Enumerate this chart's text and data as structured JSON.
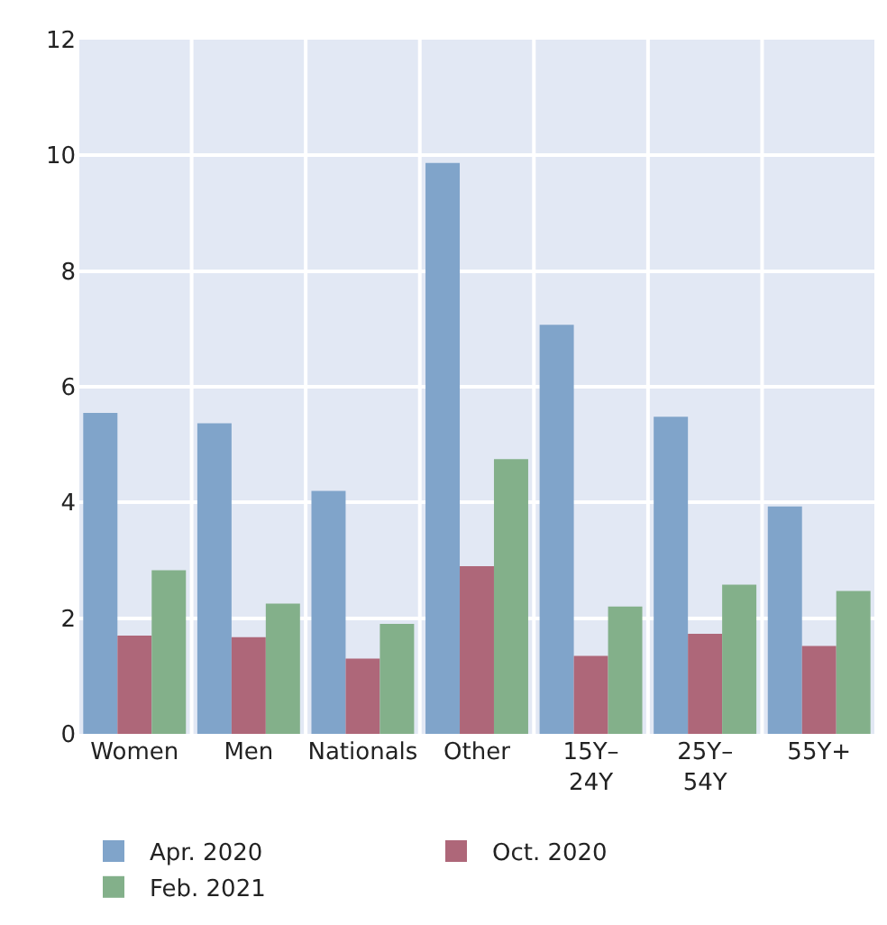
{
  "chart_data": {
    "type": "bar",
    "categories": [
      "Women",
      "Men",
      "Nationals",
      "Other",
      "15Y–24Y",
      "25Y–54Y",
      "55Y+"
    ],
    "series": [
      {
        "name": "Apr. 2020",
        "color": "#80a4ca",
        "values": [
          5.55,
          5.37,
          4.2,
          9.87,
          7.07,
          5.48,
          3.93
        ]
      },
      {
        "name": "Oct. 2020",
        "color": "#ae6779",
        "values": [
          1.7,
          1.67,
          1.3,
          2.9,
          1.35,
          1.73,
          1.52
        ]
      },
      {
        "name": "Feb. 2021",
        "color": "#83b08a",
        "values": [
          2.83,
          2.25,
          1.9,
          4.75,
          2.2,
          2.58,
          2.47
        ]
      }
    ],
    "ylim": [
      0,
      12
    ],
    "yticks": [
      0,
      2,
      4,
      6,
      8,
      10,
      12
    ],
    "grid": true,
    "legend": "bottom"
  }
}
